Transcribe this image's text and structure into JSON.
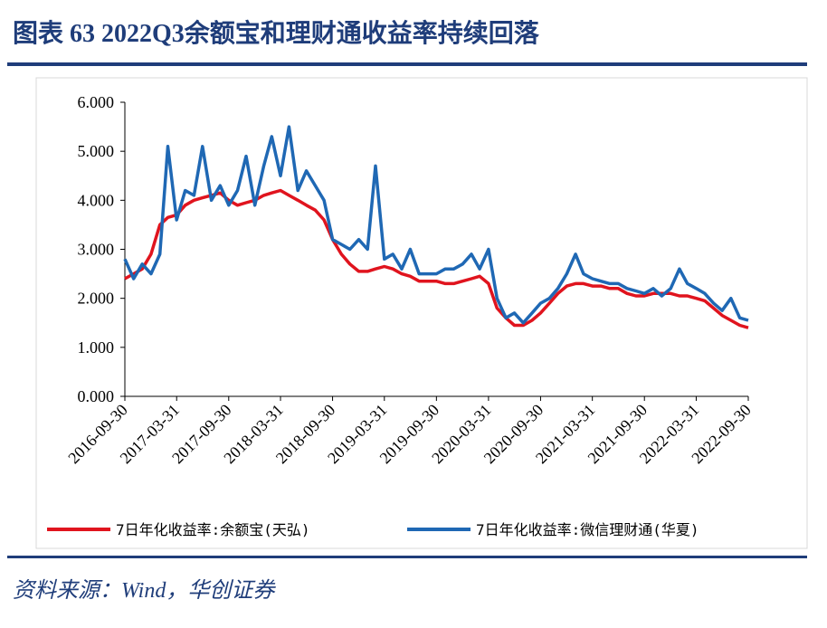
{
  "header": {
    "title": "图表 63  2022Q3余额宝和理财通收益率持续回落"
  },
  "chart_data": {
    "type": "line",
    "x": [
      "2016-09-30",
      "2016-10-31",
      "2016-11-30",
      "2016-12-31",
      "2017-01-31",
      "2017-02-28",
      "2017-03-31",
      "2017-04-30",
      "2017-05-31",
      "2017-06-30",
      "2017-07-31",
      "2017-08-31",
      "2017-09-30",
      "2017-10-31",
      "2017-11-30",
      "2017-12-31",
      "2018-01-31",
      "2018-02-28",
      "2018-03-31",
      "2018-04-30",
      "2018-05-31",
      "2018-06-30",
      "2018-07-31",
      "2018-08-31",
      "2018-09-30",
      "2018-10-31",
      "2018-11-30",
      "2018-12-31",
      "2019-01-31",
      "2019-02-28",
      "2019-03-31",
      "2019-04-30",
      "2019-05-31",
      "2019-06-30",
      "2019-07-31",
      "2019-08-31",
      "2019-09-30",
      "2019-10-31",
      "2019-11-30",
      "2019-12-31",
      "2020-01-31",
      "2020-02-29",
      "2020-03-31",
      "2020-04-30",
      "2020-05-31",
      "2020-06-30",
      "2020-07-31",
      "2020-08-31",
      "2020-09-30",
      "2020-10-31",
      "2020-11-30",
      "2020-12-31",
      "2021-01-31",
      "2021-02-28",
      "2021-03-31",
      "2021-04-30",
      "2021-05-31",
      "2021-06-30",
      "2021-07-31",
      "2021-08-31",
      "2021-09-30",
      "2021-10-31",
      "2021-11-30",
      "2021-12-31",
      "2022-01-31",
      "2022-02-28",
      "2022-03-31",
      "2022-04-30",
      "2022-05-31",
      "2022-06-30",
      "2022-07-31",
      "2022-08-31",
      "2022-09-30"
    ],
    "series": [
      {
        "name": "7日年化收益率:余额宝(天弘)",
        "color": "#e0141e",
        "values": [
          2.4,
          2.5,
          2.6,
          2.9,
          3.5,
          3.65,
          3.7,
          3.9,
          4.0,
          4.05,
          4.1,
          4.15,
          4.0,
          3.9,
          3.95,
          4.0,
          4.1,
          4.15,
          4.2,
          4.1,
          4.0,
          3.9,
          3.8,
          3.6,
          3.2,
          2.9,
          2.7,
          2.55,
          2.55,
          2.6,
          2.65,
          2.6,
          2.5,
          2.45,
          2.35,
          2.35,
          2.35,
          2.3,
          2.3,
          2.35,
          2.4,
          2.45,
          2.3,
          1.8,
          1.6,
          1.45,
          1.45,
          1.55,
          1.7,
          1.9,
          2.1,
          2.25,
          2.3,
          2.3,
          2.25,
          2.25,
          2.2,
          2.2,
          2.1,
          2.05,
          2.05,
          2.1,
          2.1,
          2.1,
          2.05,
          2.05,
          2.0,
          1.95,
          1.8,
          1.65,
          1.55,
          1.45,
          1.4
        ]
      },
      {
        "name": "7日年化收益率:微信理财通(华夏)",
        "color": "#1f68b4",
        "values": [
          2.8,
          2.4,
          2.7,
          2.5,
          2.9,
          5.1,
          3.6,
          4.2,
          4.1,
          5.1,
          4.0,
          4.3,
          3.9,
          4.2,
          4.9,
          3.9,
          4.7,
          5.3,
          4.5,
          5.5,
          4.2,
          4.6,
          4.3,
          4.0,
          3.2,
          3.1,
          3.0,
          3.2,
          3.0,
          4.7,
          2.8,
          2.9,
          2.6,
          3.0,
          2.5,
          2.5,
          2.5,
          2.6,
          2.6,
          2.7,
          2.9,
          2.6,
          3.0,
          2.0,
          1.6,
          1.7,
          1.5,
          1.7,
          1.9,
          2.0,
          2.2,
          2.5,
          2.9,
          2.5,
          2.4,
          2.35,
          2.3,
          2.3,
          2.2,
          2.15,
          2.1,
          2.2,
          2.05,
          2.2,
          2.6,
          2.3,
          2.2,
          2.1,
          1.9,
          1.75,
          2.0,
          1.6,
          1.55
        ]
      }
    ],
    "xlim": [
      "2016-09-30",
      "2022-09-30"
    ],
    "xticks": [
      "2016-09-30",
      "2017-03-31",
      "2017-09-30",
      "2018-03-31",
      "2018-09-30",
      "2019-03-31",
      "2019-09-30",
      "2020-03-31",
      "2020-09-30",
      "2021-03-31",
      "2021-09-30",
      "2022-03-31",
      "2022-09-30"
    ],
    "ylim": [
      0,
      6
    ],
    "yticks": [
      {
        "value": 0,
        "label": "0.000"
      },
      {
        "value": 1,
        "label": "1.000"
      },
      {
        "value": 2,
        "label": "2.000"
      },
      {
        "value": 3,
        "label": "3.000"
      },
      {
        "value": 4,
        "label": "4.000"
      },
      {
        "value": 5,
        "label": "5.000"
      },
      {
        "value": 6,
        "label": "6.000"
      }
    ],
    "grid": false,
    "legend": "bottom"
  },
  "footer": {
    "source": "资料来源：Wind，华创证券"
  }
}
